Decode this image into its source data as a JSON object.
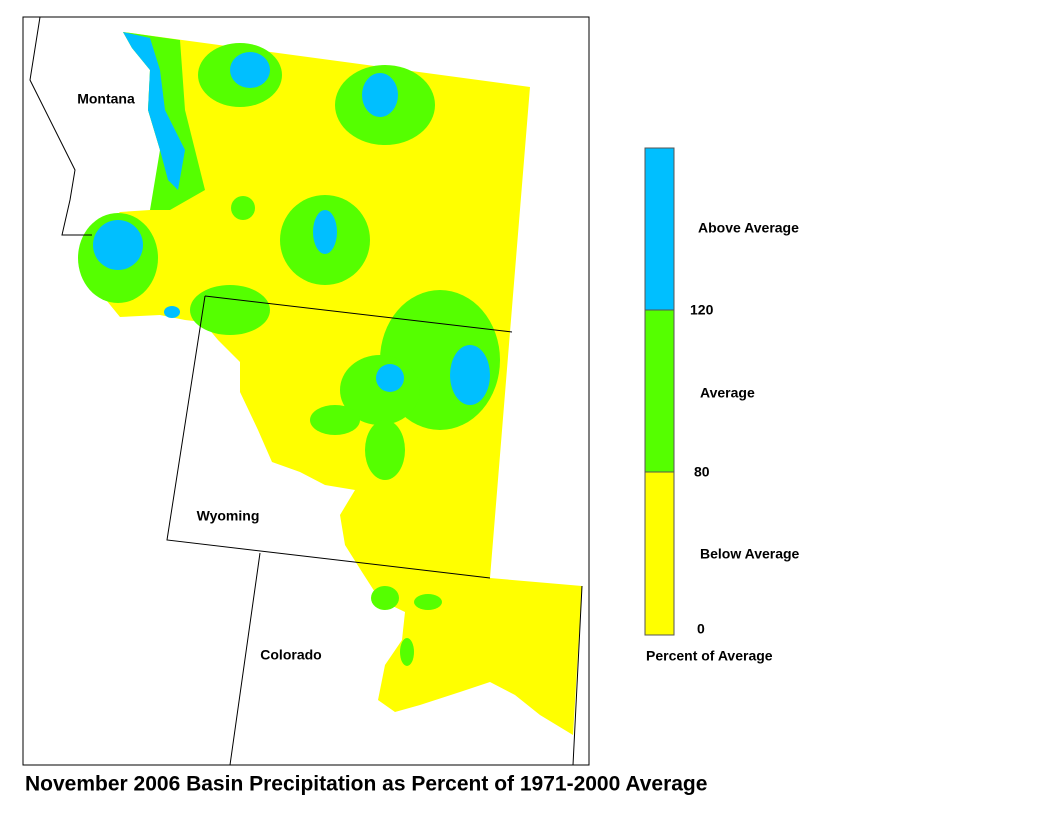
{
  "title": "November 2006 Basin Precipitation as Percent of 1971-2000 Average",
  "map": {
    "states": [
      "Montana",
      "Wyoming",
      "Colorado"
    ]
  },
  "legend": {
    "bands": [
      "Above Average",
      "Average",
      "Below Average"
    ],
    "ticks": [
      "120",
      "80",
      "0"
    ],
    "caption": "Percent of Average"
  }
}
